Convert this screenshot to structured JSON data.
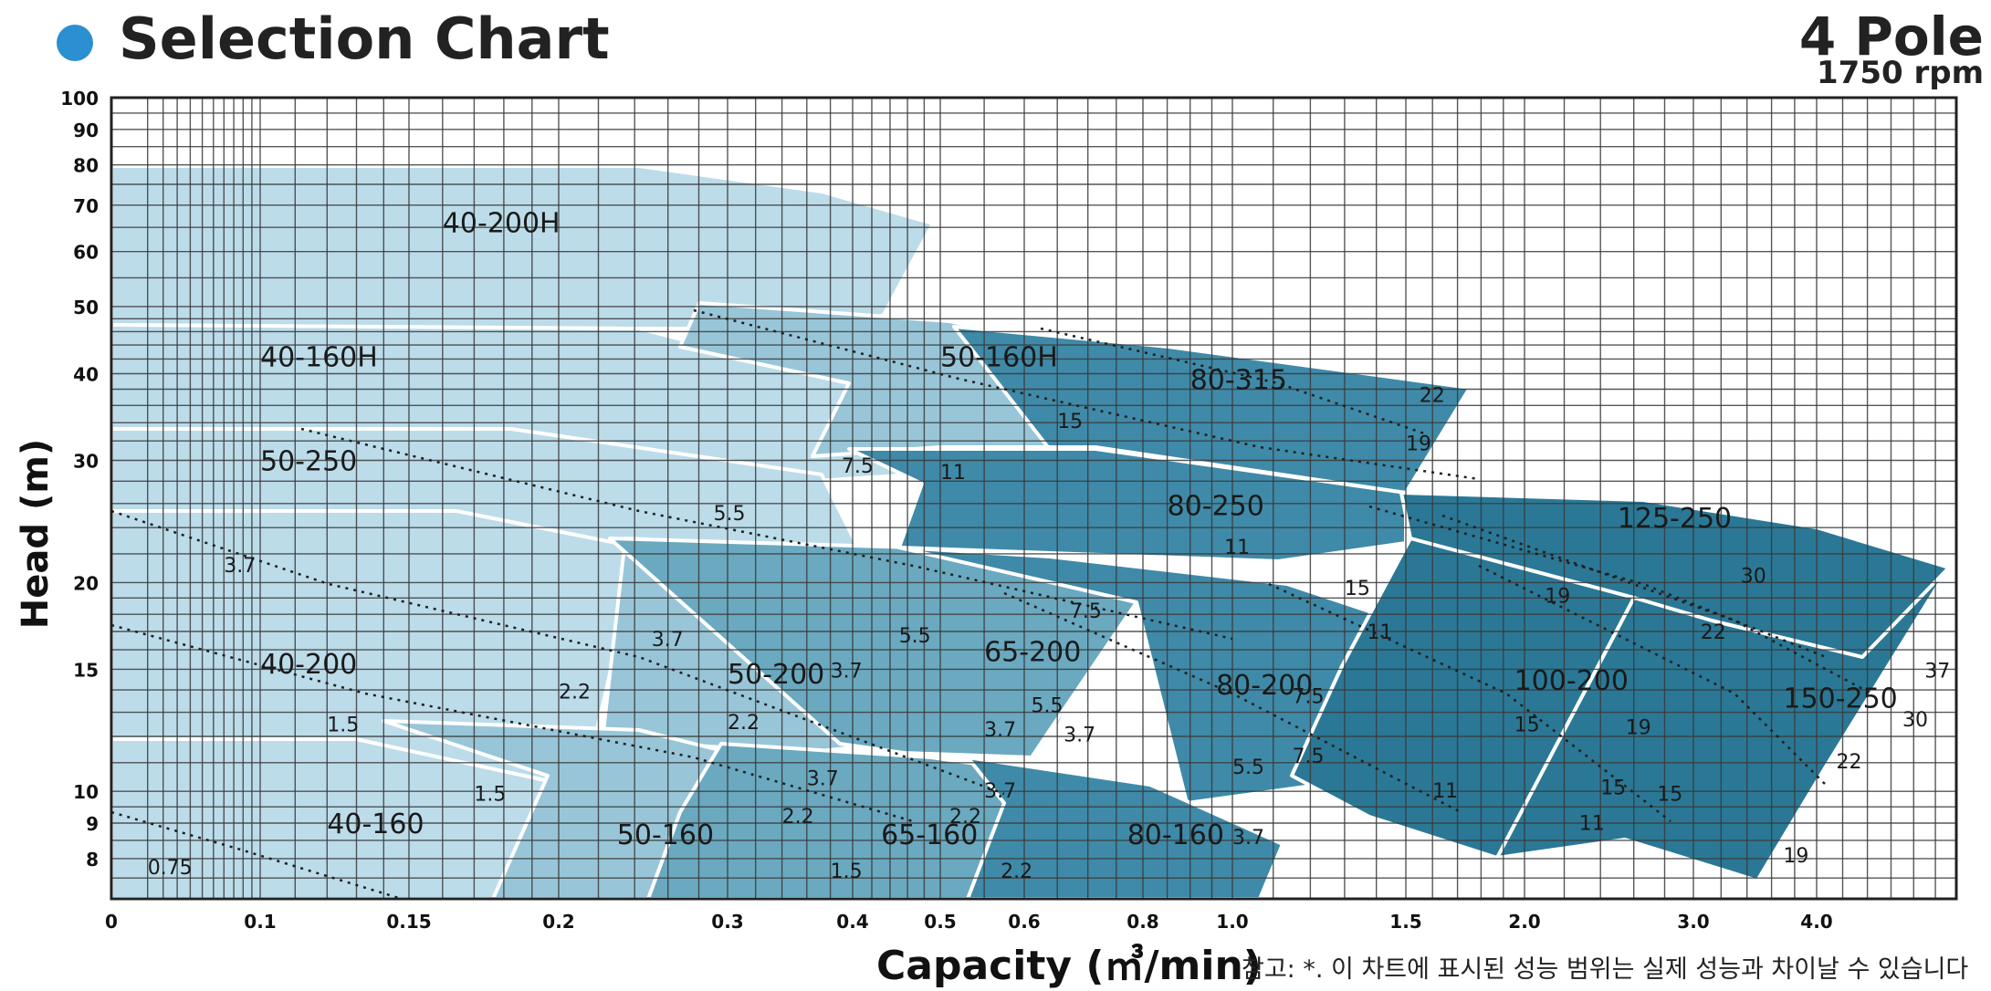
{
  "header": {
    "title": "Selection Chart",
    "pole": "4 Pole",
    "rpm": "1750 rpm"
  },
  "colors": {
    "dot": "#2b8fd1",
    "grid": "#3a3a3a",
    "background": "#ffffff",
    "white_border": "#ffffff",
    "tier1": "#bcdcea",
    "tier2": "#98c6d8",
    "tier3": "#6aa9c0",
    "tier4": "#3f8aa8",
    "tier5": "#2a7895"
  },
  "footer": {
    "xlabel": "Capacity (㎥/min)",
    "note": "참고: *. 이 차트에 표시된 성능 범위는 실제 성능과 차이날 수 있습니다"
  },
  "chart_data": {
    "type": "area",
    "title": "Selection Chart",
    "xlabel": "Capacity (㎥/min)",
    "ylabel": "Head (m)",
    "x_scale": "log",
    "y_scale": "log",
    "x_ticks": [
      "0",
      "0.1",
      "0.15",
      "0.2",
      "0.3",
      "0.4",
      "0.5",
      "0.6",
      "0.8",
      "1.0",
      "1.5",
      "2.0",
      "3.0",
      "4.0"
    ],
    "y_ticks": [
      "8",
      "9",
      "10",
      "15",
      "20",
      "30",
      "40",
      "50",
      "60",
      "70",
      "80",
      "90",
      "100"
    ],
    "grid": true,
    "regions": [
      {
        "name": "40-200H",
        "tier": 1,
        "label": [
          0.16,
          64
        ]
      },
      {
        "name": "40-160H",
        "tier": 1,
        "label": [
          0.1,
          41
        ]
      },
      {
        "name": "50-250",
        "tier": 1,
        "label": [
          0.1,
          29
        ]
      },
      {
        "name": "40-200",
        "tier": 1,
        "label": [
          0.1,
          14.8
        ]
      },
      {
        "name": "40-160",
        "tier": 1,
        "label": [
          0.12,
          8.7
        ]
      },
      {
        "name": "50-160H",
        "tier": 2,
        "label": [
          0.5,
          41
        ]
      },
      {
        "name": "50-200",
        "tier": 2,
        "label": [
          0.3,
          14.3
        ]
      },
      {
        "name": "50-160",
        "tier": 2,
        "label": [
          0.23,
          8.4
        ]
      },
      {
        "name": "65-200",
        "tier": 3,
        "label": [
          0.55,
          15.4
        ]
      },
      {
        "name": "65-160",
        "tier": 3,
        "label": [
          0.43,
          8.4
        ]
      },
      {
        "name": "80-315",
        "tier": 4,
        "label": [
          0.9,
          38
        ]
      },
      {
        "name": "80-250",
        "tier": 4,
        "label": [
          0.85,
          25
        ]
      },
      {
        "name": "80-200",
        "tier": 4,
        "label": [
          0.96,
          13.8
        ]
      },
      {
        "name": "80-160",
        "tier": 4,
        "label": [
          0.77,
          8.4
        ]
      },
      {
        "name": "125-250",
        "tier": 5,
        "label": [
          2.5,
          24
        ]
      },
      {
        "name": "100-200",
        "tier": 5,
        "label": [
          1.95,
          14
        ]
      },
      {
        "name": "150-250",
        "tier": 5,
        "label": [
          3.7,
          13.2
        ]
      }
    ],
    "motor_kw_labels": [
      {
        "text": "0.75",
        "pos": [
          0.05,
          7.6
        ]
      },
      {
        "text": "1.5",
        "pos": [
          0.12,
          12.2
        ]
      },
      {
        "text": "1.5",
        "pos": [
          0.17,
          9.7
        ]
      },
      {
        "text": "1.5",
        "pos": [
          0.38,
          7.5
        ]
      },
      {
        "text": "2.2",
        "pos": [
          0.2,
          13.6
        ]
      },
      {
        "text": "2.2",
        "pos": [
          0.3,
          12.3
        ]
      },
      {
        "text": "2.2",
        "pos": [
          0.34,
          9.0
        ]
      },
      {
        "text": "2.2",
        "pos": [
          0.51,
          9.0
        ]
      },
      {
        "text": "2.2",
        "pos": [
          0.57,
          7.5
        ]
      },
      {
        "text": "3.7",
        "pos": [
          0.08,
          20.7
        ]
      },
      {
        "text": "3.7",
        "pos": [
          0.25,
          16.2
        ]
      },
      {
        "text": "3.7",
        "pos": [
          0.38,
          14.6
        ]
      },
      {
        "text": "3.7",
        "pos": [
          0.36,
          10.2
        ]
      },
      {
        "text": "3.7",
        "pos": [
          0.55,
          9.8
        ]
      },
      {
        "text": "3.7",
        "pos": [
          0.55,
          12.0
        ]
      },
      {
        "text": "3.7",
        "pos": [
          0.66,
          11.8
        ]
      },
      {
        "text": "3.7",
        "pos": [
          1.0,
          8.4
        ]
      },
      {
        "text": "5.5",
        "pos": [
          0.29,
          24.6
        ]
      },
      {
        "text": "5.5",
        "pos": [
          0.45,
          16.4
        ]
      },
      {
        "text": "5.5",
        "pos": [
          0.61,
          13.0
        ]
      },
      {
        "text": "5.5",
        "pos": [
          1.0,
          10.6
        ]
      },
      {
        "text": "7.5",
        "pos": [
          0.39,
          28.8
        ]
      },
      {
        "text": "7.5",
        "pos": [
          0.67,
          17.8
        ]
      },
      {
        "text": "7.5",
        "pos": [
          1.15,
          13.4
        ]
      },
      {
        "text": "7.5",
        "pos": [
          1.15,
          11.0
        ]
      },
      {
        "text": "11",
        "pos": [
          0.5,
          28.2
        ]
      },
      {
        "text": "11",
        "pos": [
          0.98,
          22.0
        ]
      },
      {
        "text": "11",
        "pos": [
          1.37,
          16.6
        ]
      },
      {
        "text": "11",
        "pos": [
          1.6,
          9.8
        ]
      },
      {
        "text": "11",
        "pos": [
          2.28,
          8.8
        ]
      },
      {
        "text": "15",
        "pos": [
          0.65,
          33.4
        ]
      },
      {
        "text": "15",
        "pos": [
          1.3,
          19.2
        ]
      },
      {
        "text": "15",
        "pos": [
          1.95,
          12.2
        ]
      },
      {
        "text": "15",
        "pos": [
          2.4,
          9.9
        ]
      },
      {
        "text": "15",
        "pos": [
          2.75,
          9.7
        ]
      },
      {
        "text": "19",
        "pos": [
          1.5,
          31.0
        ]
      },
      {
        "text": "19",
        "pos": [
          2.1,
          18.7
        ]
      },
      {
        "text": "19",
        "pos": [
          2.55,
          12.1
        ]
      },
      {
        "text": "19",
        "pos": [
          3.7,
          7.9
        ]
      },
      {
        "text": "22",
        "pos": [
          1.55,
          36.4
        ]
      },
      {
        "text": "22",
        "pos": [
          3.05,
          16.6
        ]
      },
      {
        "text": "22",
        "pos": [
          4.15,
          10.8
        ]
      },
      {
        "text": "30",
        "pos": [
          3.35,
          20.0
        ]
      },
      {
        "text": "30",
        "pos": [
          4.7,
          12.4
        ]
      },
      {
        "text": "37",
        "pos": [
          4.9,
          14.6
        ]
      }
    ]
  }
}
